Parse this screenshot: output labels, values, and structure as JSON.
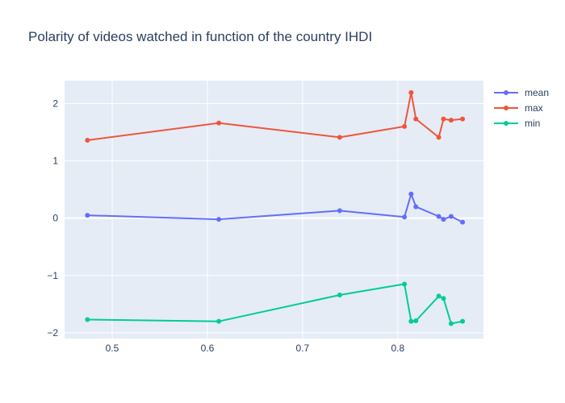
{
  "chart_data": {
    "type": "line",
    "title": "Polarity of videos watched in function of the country IHDI",
    "xlabel": "",
    "ylabel": "",
    "xlim": [
      0.45,
      0.89
    ],
    "ylim": [
      -2.1,
      2.4
    ],
    "x_ticks": [
      {
        "value": 0.5,
        "label": "0.5"
      },
      {
        "value": 0.6,
        "label": "0.6"
      },
      {
        "value": 0.7,
        "label": "0.7"
      },
      {
        "value": 0.8,
        "label": "0.8"
      }
    ],
    "y_ticks": [
      {
        "value": -2,
        "label": "−2"
      },
      {
        "value": -1,
        "label": "−1"
      },
      {
        "value": 0,
        "label": "0"
      },
      {
        "value": 1,
        "label": "1"
      },
      {
        "value": 2,
        "label": "2"
      }
    ],
    "grid": true,
    "legend": "top-right",
    "x": [
      0.474,
      0.612,
      0.739,
      0.807,
      0.814,
      0.819,
      0.843,
      0.848,
      0.856,
      0.868
    ],
    "series": [
      {
        "name": "mean",
        "color": "#636efa",
        "values": [
          0.05,
          -0.02,
          0.13,
          0.02,
          0.42,
          0.2,
          0.03,
          -0.02,
          0.03,
          -0.07
        ]
      },
      {
        "name": "max",
        "color": "#EF553B",
        "values": [
          1.36,
          1.66,
          1.41,
          1.6,
          2.19,
          1.73,
          1.41,
          1.73,
          1.71,
          1.73
        ]
      },
      {
        "name": "min",
        "color": "#00cc96",
        "values": [
          -1.77,
          -1.8,
          -1.34,
          -1.15,
          -1.8,
          -1.79,
          -1.36,
          -1.4,
          -1.84,
          -1.8
        ]
      }
    ]
  }
}
